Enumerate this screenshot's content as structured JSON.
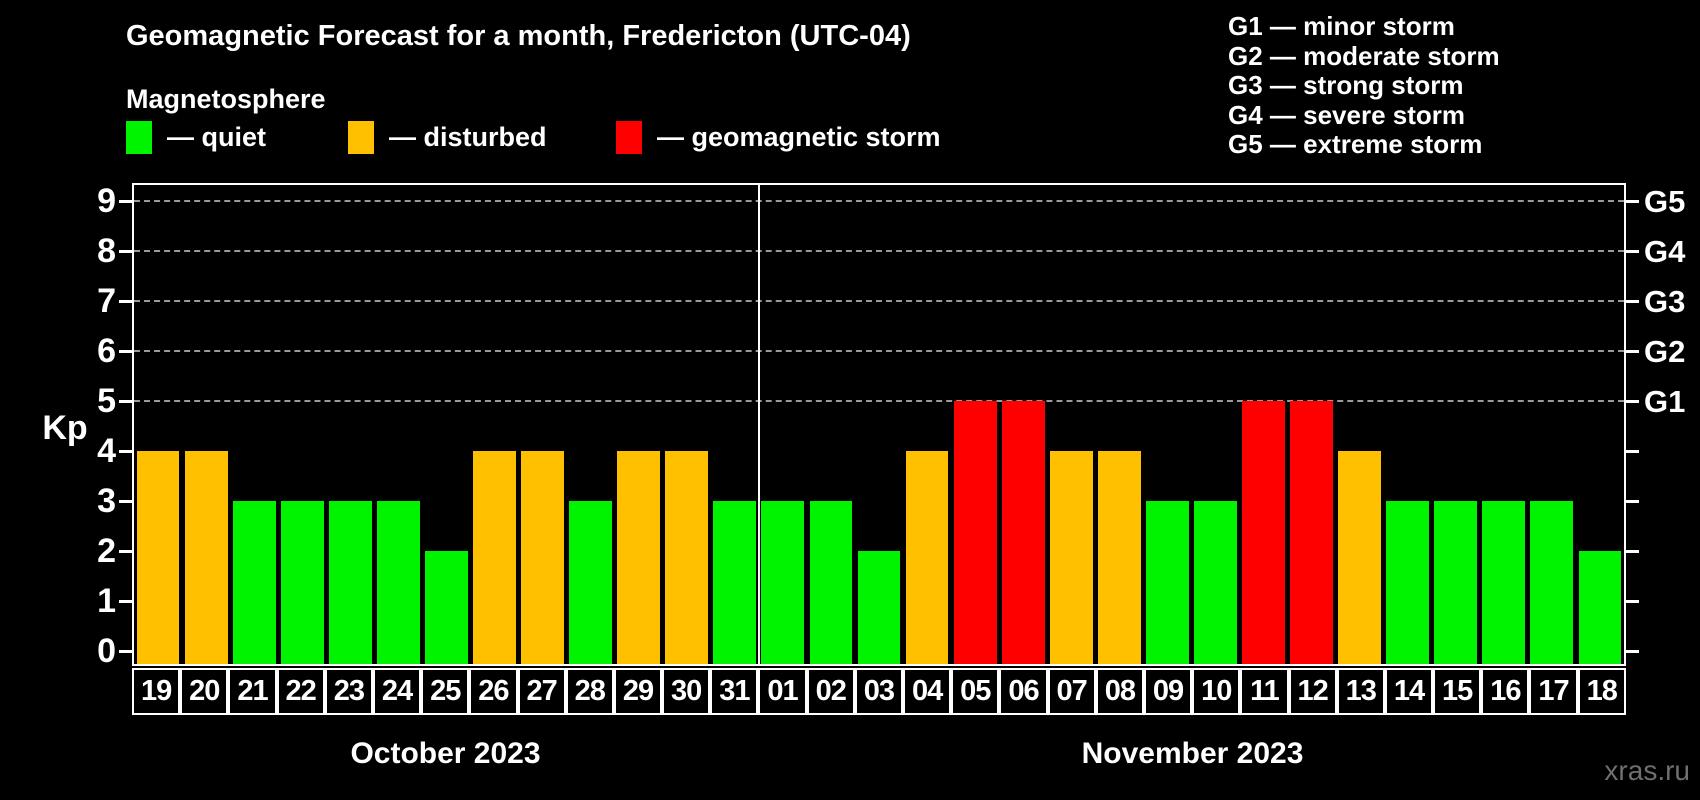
{
  "title": "Geomagnetic Forecast for a month, Fredericton (UTC-04)",
  "subtitle": "Magnetosphere",
  "legend": {
    "items": [
      {
        "name": "quiet",
        "label": "— quiet",
        "color": "#00f400"
      },
      {
        "name": "disturbed",
        "label": "— disturbed",
        "color": "#ffc000"
      },
      {
        "name": "storm",
        "label": "— geomagnetic storm",
        "color": "#ff0000"
      }
    ]
  },
  "storm_scale_legend": [
    "G1 — minor storm",
    "G2 — moderate storm",
    "G3 — strong storm",
    "G4 — severe storm",
    "G5 — extreme storm"
  ],
  "axes": {
    "y_left_label": "Kp",
    "y_ticks": [
      0,
      1,
      2,
      3,
      4,
      5,
      6,
      7,
      8,
      9
    ],
    "y_right_labels": [
      {
        "label": "G1",
        "kp": 5
      },
      {
        "label": "G2",
        "kp": 6
      },
      {
        "label": "G3",
        "kp": 7
      },
      {
        "label": "G4",
        "kp": 8
      },
      {
        "label": "G5",
        "kp": 9
      }
    ],
    "x_months": [
      {
        "label": "October 2023"
      },
      {
        "label": "November 2023"
      }
    ]
  },
  "watermark": "xras.ru",
  "chart_data": {
    "type": "bar",
    "title": "Geomagnetic Forecast for a month, Fredericton (UTC-04)",
    "subtitle": "Magnetosphere",
    "ylabel": "Kp",
    "ylim": [
      0,
      9
    ],
    "grid": "dashed horizontal lines at Kp 5-9 (G1-G5)",
    "gridlines_kp": [
      5,
      6,
      7,
      8,
      9
    ],
    "legend_position": "top-left",
    "months": [
      {
        "label": "October 2023",
        "days": 13
      },
      {
        "label": "November 2023",
        "days": 18
      }
    ],
    "categories": [
      "19",
      "20",
      "21",
      "22",
      "23",
      "24",
      "25",
      "26",
      "27",
      "28",
      "29",
      "30",
      "31",
      "01",
      "02",
      "03",
      "04",
      "05",
      "06",
      "07",
      "08",
      "09",
      "10",
      "11",
      "12",
      "13",
      "14",
      "15",
      "16",
      "17",
      "18"
    ],
    "values": [
      4,
      4,
      3,
      3,
      3,
      3,
      2,
      4,
      4,
      3,
      4,
      4,
      3,
      3,
      3,
      2,
      4,
      5,
      5,
      4,
      4,
      3,
      3,
      5,
      5,
      4,
      3,
      3,
      3,
      3,
      2
    ],
    "statuses": [
      "disturbed",
      "disturbed",
      "quiet",
      "quiet",
      "quiet",
      "quiet",
      "quiet",
      "disturbed",
      "disturbed",
      "quiet",
      "disturbed",
      "disturbed",
      "quiet",
      "quiet",
      "quiet",
      "quiet",
      "disturbed",
      "storm",
      "storm",
      "disturbed",
      "disturbed",
      "quiet",
      "quiet",
      "storm",
      "storm",
      "disturbed",
      "quiet",
      "quiet",
      "quiet",
      "quiet",
      "quiet"
    ],
    "colors_by_status": {
      "quiet": "#00f400",
      "disturbed": "#ffc000",
      "storm": "#ff0000"
    }
  }
}
